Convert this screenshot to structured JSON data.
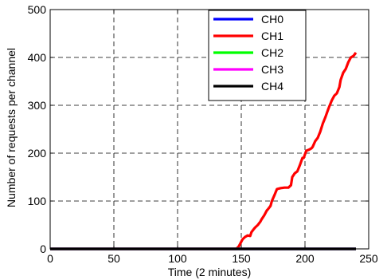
{
  "chart_data": {
    "type": "line",
    "title": "",
    "xlabel": "Time  (2 minutes)",
    "ylabel": "Number of requests per channel",
    "xlim": [
      0,
      250
    ],
    "ylim": [
      0,
      500
    ],
    "xticks": [
      0,
      50,
      100,
      150,
      200,
      250
    ],
    "yticks": [
      0,
      100,
      200,
      300,
      400,
      500
    ],
    "grid": true,
    "legend_position": "top-right",
    "series": [
      {
        "name": "CH0",
        "color": "#0000ff",
        "x": [
          0,
          240
        ],
        "y": [
          0,
          0
        ]
      },
      {
        "name": "CH1",
        "color": "#ff0000",
        "x": [
          0,
          146,
          148,
          150,
          151,
          153,
          155,
          157,
          158,
          160,
          161,
          163,
          165,
          166,
          168,
          170,
          171,
          173,
          174,
          176,
          178,
          181,
          184,
          187,
          189,
          190,
          192,
          194,
          196,
          198,
          199,
          201,
          203,
          205,
          206,
          208,
          210,
          212,
          214,
          216,
          218,
          219,
          221,
          223,
          225,
          227,
          228,
          230,
          232,
          234,
          236,
          238,
          240
        ],
        "y": [
          0,
          0,
          5,
          15,
          20,
          25,
          28,
          27,
          35,
          42,
          45,
          50,
          57,
          62,
          70,
          80,
          83,
          90,
          100,
          112,
          125,
          127,
          128,
          128,
          133,
          150,
          158,
          162,
          175,
          190,
          190,
          205,
          207,
          210,
          213,
          225,
          232,
          245,
          262,
          275,
          290,
          297,
          310,
          320,
          325,
          338,
          353,
          368,
          376,
          390,
          400,
          403,
          410
        ]
      },
      {
        "name": "CH2",
        "color": "#00ff00",
        "x": [
          0,
          240
        ],
        "y": [
          0,
          0
        ]
      },
      {
        "name": "CH3",
        "color": "#ff00ff",
        "x": [
          0,
          240
        ],
        "y": [
          0,
          0
        ]
      },
      {
        "name": "CH4",
        "color": "#000000",
        "x": [
          0,
          240
        ],
        "y": [
          0,
          0
        ]
      }
    ]
  }
}
